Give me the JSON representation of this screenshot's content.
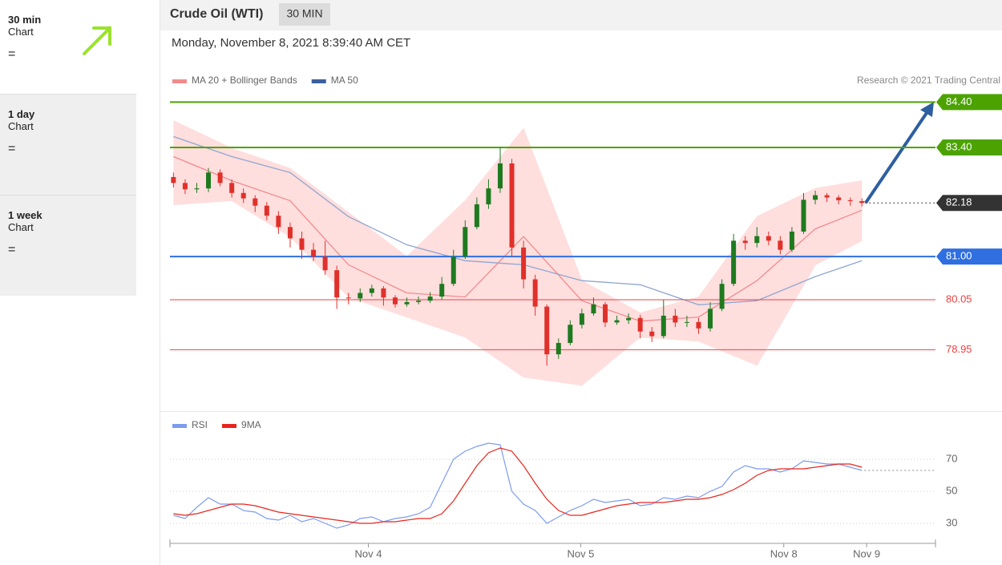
{
  "sidebar": [
    {
      "period": "30 min",
      "label": "Chart",
      "signal": "="
    },
    {
      "period": "1 day",
      "label": "Chart",
      "signal": "="
    },
    {
      "period": "1 week",
      "label": "Chart",
      "signal": "="
    }
  ],
  "header": {
    "instrument": "Crude Oil (WTI)",
    "interval": "30 MIN",
    "timestamp": "Monday, November 8, 2021 8:39:40 AM CET"
  },
  "chart_data": [
    {
      "type": "candlestick",
      "credit": "Research © 2021 Trading Central",
      "xlim": [
        -0.3,
        65.3
      ],
      "ylim": [
        77.6,
        84.6
      ],
      "up_color": "#1f7a1f",
      "down_color": "#e0302a",
      "candles": {
        "open": [
          82.75,
          82.62,
          82.48,
          82.5,
          82.85,
          82.62,
          82.4,
          82.28,
          82.12,
          81.9,
          81.65,
          81.4,
          81.15,
          81.0,
          80.7,
          80.1,
          80.08,
          80.2,
          80.3,
          80.1,
          79.95,
          80.0,
          80.03,
          80.12,
          80.4,
          81.0,
          81.65,
          82.15,
          82.5,
          83.05,
          81.2,
          80.5,
          79.9,
          78.85,
          79.1,
          79.5,
          79.75,
          79.95,
          79.55,
          79.6,
          79.65,
          79.35,
          79.25,
          79.7,
          79.55,
          79.56,
          79.42,
          79.85,
          80.4,
          81.35,
          81.3,
          81.45,
          81.35,
          81.15,
          81.55,
          82.25,
          82.35,
          82.3,
          82.24,
          82.22
        ],
        "high": [
          82.85,
          82.7,
          82.62,
          82.95,
          82.92,
          82.7,
          82.5,
          82.35,
          82.2,
          82.0,
          81.75,
          81.55,
          81.3,
          81.35,
          80.8,
          80.2,
          80.3,
          80.38,
          80.35,
          80.15,
          80.1,
          80.12,
          80.22,
          80.55,
          81.15,
          81.8,
          82.3,
          82.7,
          83.4,
          83.15,
          81.35,
          80.6,
          79.95,
          79.2,
          79.6,
          79.85,
          80.1,
          80.0,
          79.7,
          79.75,
          79.72,
          79.45,
          80.05,
          79.85,
          79.7,
          79.65,
          80.0,
          80.5,
          81.5,
          81.45,
          81.65,
          81.55,
          81.45,
          81.65,
          82.4,
          82.45,
          82.4,
          82.35,
          82.3,
          82.28
        ],
        "low": [
          82.52,
          82.38,
          82.4,
          82.42,
          82.55,
          82.3,
          82.18,
          81.98,
          81.8,
          81.5,
          81.2,
          80.95,
          80.9,
          80.6,
          79.85,
          79.95,
          80.0,
          80.12,
          79.92,
          79.88,
          79.9,
          79.95,
          79.98,
          80.05,
          80.35,
          80.95,
          81.6,
          82.05,
          82.4,
          81.0,
          80.3,
          79.7,
          78.6,
          78.75,
          79.05,
          79.42,
          79.7,
          79.45,
          79.5,
          79.52,
          79.2,
          79.12,
          79.2,
          79.45,
          79.45,
          79.3,
          79.35,
          79.8,
          80.35,
          81.15,
          81.2,
          81.25,
          81.05,
          81.1,
          81.5,
          82.15,
          82.2,
          82.15,
          82.12,
          82.1
        ],
        "close": [
          82.62,
          82.48,
          82.5,
          82.85,
          82.62,
          82.4,
          82.28,
          82.12,
          81.9,
          81.65,
          81.4,
          81.15,
          81.0,
          80.7,
          80.1,
          80.08,
          80.2,
          80.3,
          80.1,
          79.95,
          80.0,
          80.03,
          80.12,
          80.4,
          81.0,
          81.65,
          82.15,
          82.5,
          83.05,
          81.2,
          80.5,
          79.9,
          78.85,
          79.1,
          79.5,
          79.75,
          79.95,
          79.55,
          79.6,
          79.65,
          79.35,
          79.25,
          79.7,
          79.55,
          79.56,
          79.42,
          79.85,
          80.4,
          81.35,
          81.3,
          81.45,
          81.35,
          81.15,
          81.55,
          82.25,
          82.35,
          82.3,
          82.24,
          82.22,
          82.18
        ]
      },
      "overlay_x": [
        0,
        5,
        10,
        15,
        20,
        25,
        30,
        35,
        40,
        45,
        50,
        55,
        59
      ],
      "series": [
        {
          "name": "MA 20 + Bollinger Bands",
          "color": "#f28b8b",
          "band_color": "#ffdede",
          "values": [
            83.2,
            82.67,
            82.23,
            80.82,
            80.2,
            80.11,
            81.44,
            80.03,
            79.58,
            79.67,
            80.47,
            81.61,
            82.02
          ],
          "upper": [
            83.99,
            83.38,
            82.94,
            81.97,
            81.0,
            82.23,
            83.82,
            80.47,
            79.76,
            80.11,
            81.88,
            82.5,
            82.67
          ],
          "lower": [
            82.14,
            82.23,
            81.44,
            80.11,
            79.67,
            79.23,
            78.35,
            78.17,
            79.23,
            79.14,
            78.61,
            80.82,
            81.35
          ]
        },
        {
          "name": "MA 50",
          "color": "#8fa6cf",
          "legend_color": "#3d5f9e",
          "values": [
            83.64,
            83.2,
            82.85,
            81.88,
            81.26,
            80.91,
            80.82,
            80.47,
            80.38,
            79.94,
            80.03,
            80.56,
            80.91
          ]
        }
      ],
      "levels": [
        {
          "value": 84.4,
          "label": "84.40",
          "color": "#4ca300",
          "label_style": "box",
          "line": "solid"
        },
        {
          "value": 83.4,
          "label": "83.40",
          "color": "#4ca300",
          "label_style": "box",
          "line": "solid"
        },
        {
          "value": 82.18,
          "label": "82.18",
          "color": "#333333",
          "label_style": "box",
          "line": "dotted"
        },
        {
          "value": 81.0,
          "label": "81.00",
          "color": "#2f6fe0",
          "label_style": "box",
          "line": "solid"
        },
        {
          "value": 80.05,
          "label": "80.05",
          "color": "#f04040",
          "label_style": "text",
          "line": "solid"
        },
        {
          "value": 78.95,
          "label": "78.95",
          "color": "#f04040",
          "label_style": "text",
          "line": "solid"
        }
      ]
    },
    {
      "type": "line",
      "xlim": [
        -0.3,
        65.3
      ],
      "ylim": [
        24,
        82
      ],
      "yticks": [
        30,
        50,
        70
      ],
      "grid": true,
      "xticks": [
        {
          "value": 16.7,
          "label": "Nov 4"
        },
        {
          "value": 34.9,
          "label": "Nov 5"
        },
        {
          "value": 52.3,
          "label": "Nov 8"
        },
        {
          "value": 59.4,
          "label": "Nov 9"
        }
      ],
      "series": [
        {
          "name": "RSI",
          "color": "#7d9bef",
          "values": [
            35,
            33,
            40,
            46,
            42,
            42,
            38,
            37,
            33,
            32,
            35,
            31,
            33,
            30,
            27,
            29,
            33,
            34,
            31,
            33,
            34,
            36,
            40,
            55,
            70,
            75,
            78,
            80,
            79,
            50,
            42,
            38,
            30,
            34,
            38,
            41,
            45,
            43,
            44,
            45,
            41,
            42,
            46,
            45,
            47,
            46,
            50,
            53,
            62,
            66,
            64,
            64,
            62,
            64,
            69,
            68,
            67,
            67,
            65,
            63
          ]
        },
        {
          "name": "9MA",
          "color": "#e8251f",
          "values": [
            36,
            35,
            36,
            38,
            40,
            42,
            42,
            41,
            39,
            37,
            36,
            35,
            34,
            33,
            32,
            31,
            30,
            30,
            31,
            31,
            32,
            33,
            33,
            36,
            44,
            55,
            66,
            74,
            77,
            75,
            66,
            55,
            45,
            38,
            35,
            35,
            37,
            39,
            41,
            42,
            43,
            43,
            43,
            44,
            45,
            45,
            46,
            48,
            51,
            55,
            60,
            63,
            64,
            64,
            64,
            65,
            66,
            67,
            67,
            65
          ]
        }
      ]
    }
  ]
}
